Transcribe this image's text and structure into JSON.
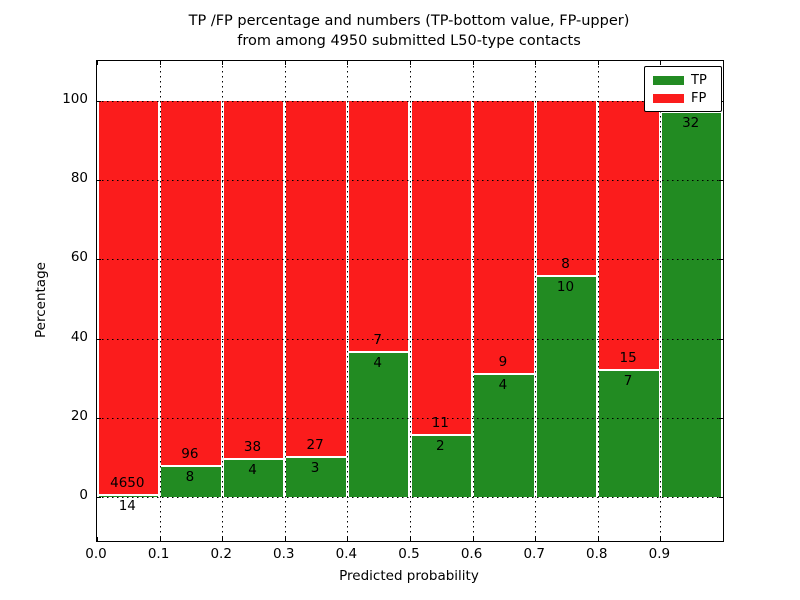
{
  "chart_data": {
    "type": "bar",
    "subtype": "stacked-percentage",
    "title_line1": "TP /FP percentage and numbers (TP-bottom value, FP-upper)",
    "title_line2": "from among 4950 submitted L50-type contacts",
    "xlabel": "Predicted probability",
    "ylabel": "Percentage",
    "total_submitted": 4950,
    "xlim": [
      0.0,
      1.0
    ],
    "ylim": [
      -11,
      110
    ],
    "x_tick_labels": [
      "0.0",
      "0.1",
      "0.2",
      "0.3",
      "0.4",
      "0.5",
      "0.6",
      "0.7",
      "0.8",
      "0.9"
    ],
    "y_tick_labels": [
      "0",
      "20",
      "40",
      "60",
      "80",
      "100"
    ],
    "y_tick_values": [
      0,
      20,
      40,
      60,
      80,
      100
    ],
    "grid_style": "dotted",
    "colors": {
      "tp": "#228b22",
      "fp": "#fb1c1c",
      "grid": "#000000",
      "background": "#ffffff"
    },
    "legend": {
      "position": "upper-right",
      "items": [
        {
          "label": "TP",
          "color": "#228b22"
        },
        {
          "label": "FP",
          "color": "#fb1c1c"
        }
      ]
    },
    "series": [
      {
        "name": "TP",
        "color": "#228b22",
        "values": [
          14,
          8,
          4,
          3,
          4,
          2,
          4,
          10,
          7,
          32
        ]
      },
      {
        "name": "FP",
        "color": "#fb1c1c",
        "values": [
          4650,
          96,
          38,
          27,
          7,
          11,
          9,
          8,
          15,
          1
        ]
      }
    ],
    "bins": [
      {
        "x_start": 0.0,
        "x_end": 0.1,
        "tp": 14,
        "fp": 4650,
        "tp_label": "14",
        "fp_label": "4650"
      },
      {
        "x_start": 0.1,
        "x_end": 0.2,
        "tp": 8,
        "fp": 96,
        "tp_label": "8",
        "fp_label": "96"
      },
      {
        "x_start": 0.2,
        "x_end": 0.3,
        "tp": 4,
        "fp": 38,
        "tp_label": "4",
        "fp_label": "38"
      },
      {
        "x_start": 0.3,
        "x_end": 0.4,
        "tp": 3,
        "fp": 27,
        "tp_label": "3",
        "fp_label": "27"
      },
      {
        "x_start": 0.4,
        "x_end": 0.5,
        "tp": 4,
        "fp": 7,
        "tp_label": "4",
        "fp_label": "7"
      },
      {
        "x_start": 0.5,
        "x_end": 0.6,
        "tp": 2,
        "fp": 11,
        "tp_label": "2",
        "fp_label": "11"
      },
      {
        "x_start": 0.6,
        "x_end": 0.7,
        "tp": 4,
        "fp": 9,
        "tp_label": "4",
        "fp_label": "9"
      },
      {
        "x_start": 0.7,
        "x_end": 0.8,
        "tp": 10,
        "fp": 8,
        "tp_label": "10",
        "fp_label": "8"
      },
      {
        "x_start": 0.8,
        "x_end": 0.9,
        "tp": 7,
        "fp": 15,
        "tp_label": "7",
        "fp_label": "15"
      },
      {
        "x_start": 0.9,
        "x_end": 1.0,
        "tp": 32,
        "fp": 1,
        "tp_label": "32",
        "fp_label": ""
      }
    ]
  }
}
